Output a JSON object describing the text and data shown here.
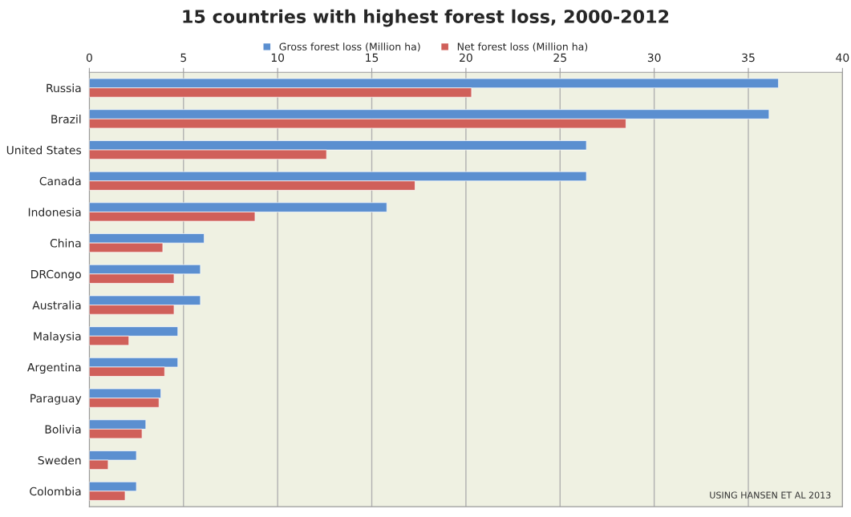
{
  "chart_data": {
    "type": "bar",
    "orientation": "horizontal",
    "title": "15 countries with highest forest loss, 2000-2012",
    "categories": [
      "Russia",
      "Brazil",
      "United States",
      "Canada",
      "Indonesia",
      "China",
      "DRCongo",
      "Australia",
      "Malaysia",
      "Argentina",
      "Paraguay",
      "Bolivia",
      "Sweden",
      "Colombia"
    ],
    "series": [
      {
        "name": "Gross forest loss (Million ha)",
        "color": "#5b8fd0",
        "values": [
          36.6,
          36.1,
          26.4,
          26.4,
          15.8,
          6.1,
          5.9,
          5.9,
          4.7,
          4.7,
          3.8,
          3.0,
          2.5,
          2.5
        ]
      },
      {
        "name": "Net forest loss (Million ha)",
        "color": "#d0605a",
        "values": [
          20.3,
          28.5,
          12.6,
          17.3,
          8.8,
          3.9,
          4.5,
          4.5,
          2.1,
          4.0,
          3.7,
          2.8,
          1.0,
          1.9
        ]
      }
    ],
    "xlim": [
      0,
      40
    ],
    "xticks": [
      0,
      5,
      10,
      15,
      20,
      25,
      30,
      35,
      40
    ],
    "grid": "x",
    "legend": "top",
    "annotations": [
      "USING HANSEN ET AL 2013"
    ]
  }
}
